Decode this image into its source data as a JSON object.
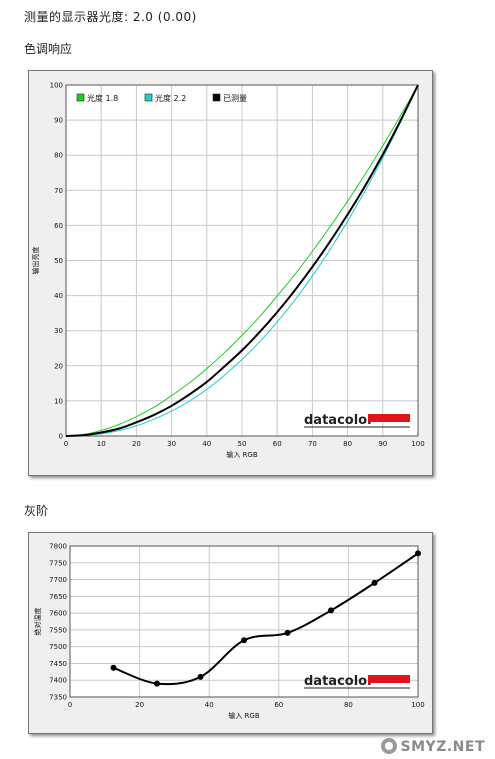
{
  "header": {
    "gamma_text": "测量的显示器光度:  2.0 (0.00)"
  },
  "section1": {
    "title": "色调响应"
  },
  "section2": {
    "title": "灰阶"
  },
  "logo": {
    "text": "datacolor",
    "color": "#e0141b"
  },
  "watermark": {
    "text": "SMYZ.NET"
  },
  "chart_data": [
    {
      "type": "line",
      "xlabel": "输入 RGB",
      "ylabel": "输出亮度",
      "xlim": [
        0,
        100
      ],
      "ylim": [
        0,
        100
      ],
      "x_ticks": [
        0,
        10,
        20,
        30,
        40,
        50,
        60,
        70,
        80,
        90,
        100
      ],
      "y_ticks": [
        0,
        10,
        20,
        30,
        40,
        50,
        60,
        70,
        80,
        90,
        100
      ],
      "grid": true,
      "legend_position": "top-left",
      "x": [
        0,
        5,
        10,
        15,
        20,
        25,
        30,
        35,
        40,
        45,
        50,
        55,
        60,
        65,
        70,
        75,
        80,
        85,
        90,
        95,
        100
      ],
      "series": [
        {
          "name": "光度 1.8",
          "color": "#22cc22",
          "values": [
            0,
            0.46,
            1.58,
            3.28,
            5.5,
            8.2,
            11.5,
            15.1,
            19.2,
            23.7,
            28.7,
            34.0,
            39.9,
            46.0,
            52.6,
            59.6,
            66.9,
            74.6,
            82.7,
            91.2,
            100
          ]
        },
        {
          "name": "光度 2.2",
          "color": "#22cccc",
          "values": [
            0,
            0.14,
            0.63,
            1.53,
            2.9,
            4.8,
            7.1,
            9.9,
            13.3,
            17.3,
            21.8,
            26.8,
            32.5,
            38.7,
            45.6,
            53.1,
            61.2,
            69.9,
            79.3,
            89.3,
            100
          ]
        },
        {
          "name": "已测量",
          "color": "#000000",
          "values": [
            0,
            0.25,
            1.0,
            2.1,
            3.9,
            6.0,
            8.6,
            11.8,
            15.4,
            19.8,
            24.4,
            29.6,
            35.3,
            41.5,
            48.2,
            55.4,
            63.1,
            71.3,
            80.2,
            89.8,
            100
          ]
        }
      ]
    },
    {
      "type": "line",
      "xlabel": "输入 RGB",
      "ylabel": "绝对温度",
      "xlim": [
        0,
        100
      ],
      "ylim": [
        7350,
        7800
      ],
      "x_ticks": [
        0,
        20,
        40,
        60,
        80,
        100
      ],
      "y_ticks": [
        7350,
        7400,
        7450,
        7500,
        7550,
        7600,
        7650,
        7700,
        7750,
        7800
      ],
      "grid": true,
      "x": [
        12.5,
        25,
        37.5,
        50,
        62.5,
        75,
        87.5,
        100
      ],
      "series": [
        {
          "color": "#000000",
          "values": [
            7437,
            7390,
            7410,
            7519,
            7541,
            7608,
            7690,
            7778
          ]
        }
      ]
    }
  ]
}
